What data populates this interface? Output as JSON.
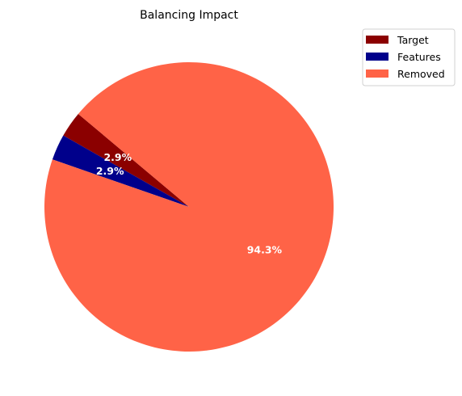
{
  "chart_data": {
    "type": "pie",
    "title": "Balancing Impact",
    "labels": [
      "Target",
      "Features",
      "Removed"
    ],
    "values": [
      2.9,
      2.9,
      94.3
    ],
    "value_labels": [
      "2.9%",
      "2.9%",
      "94.3%"
    ],
    "colors": [
      "#8b0000",
      "#00008b",
      "#ff6347"
    ],
    "legend_position": "top-right"
  }
}
